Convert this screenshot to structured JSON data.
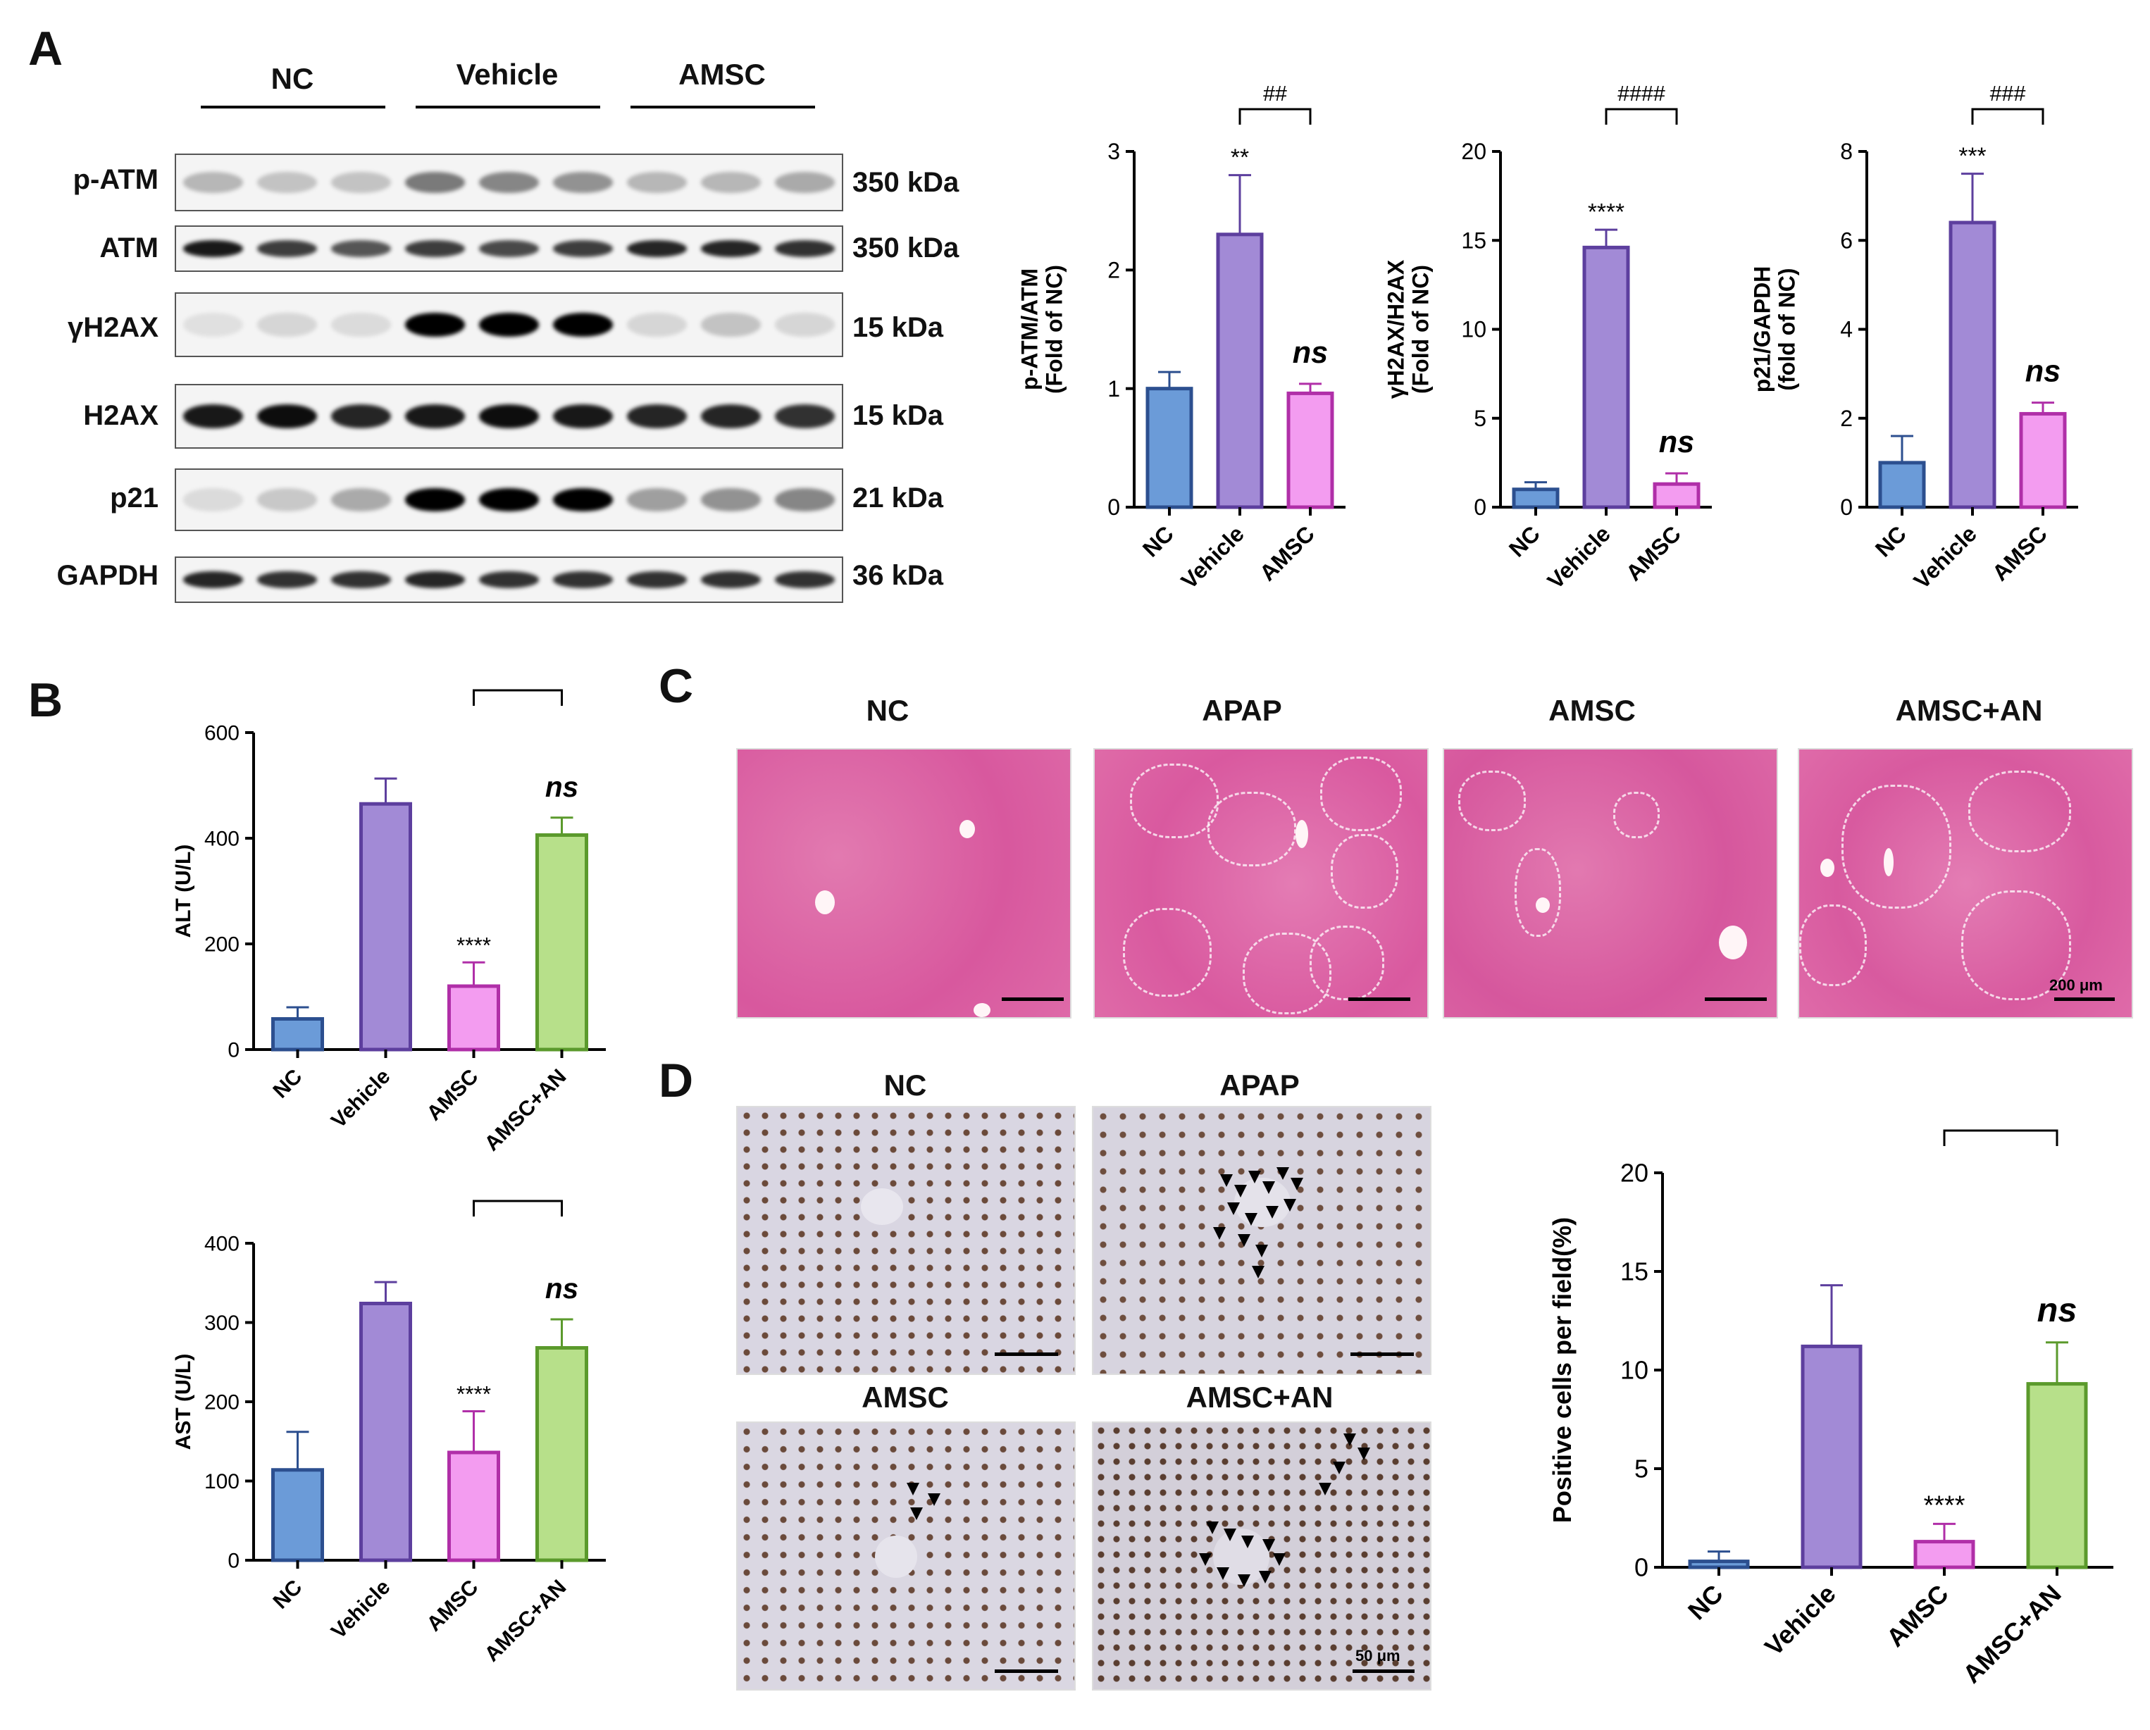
{
  "panels": {
    "A": "A",
    "B": "B",
    "C": "C",
    "D": "D"
  },
  "blot": {
    "groups": [
      "NC",
      "Vehicle",
      "AMSC"
    ],
    "rows": [
      {
        "label": "p-ATM",
        "kda": "350 kDa"
      },
      {
        "label": "ATM",
        "kda": "350 kDa"
      },
      {
        "label": "γH2AX",
        "kda": "15 kDa"
      },
      {
        "label": "H2AX",
        "kda": "15 kDa"
      },
      {
        "label": "p21",
        "kda": "21 kDa"
      },
      {
        "label": "GAPDH",
        "kda": "36 kDa"
      }
    ]
  },
  "histology_C": {
    "groups": [
      "NC",
      "APAP",
      "AMSC",
      "AMSC+AN"
    ],
    "scale_label": "200 μm"
  },
  "histology_D": {
    "groups": [
      "NC",
      "APAP",
      "AMSC",
      "AMSC+AN"
    ],
    "scale_label": "50 μm"
  },
  "colors": {
    "NC": {
      "fill": "#6b9bd8",
      "stroke": "#2c4f8f"
    },
    "Vehicle": {
      "fill": "#a28ad6",
      "stroke": "#5d3f9e"
    },
    "AMSC": {
      "fill": "#f39cf0",
      "stroke": "#b02fa8"
    },
    "AMSC+AN": {
      "fill": "#b7e08a",
      "stroke": "#5b9a2c"
    }
  },
  "chart_data": [
    {
      "type": "bar",
      "categories": [
        "NC",
        "Vehicle",
        "AMSC"
      ],
      "values": [
        1.0,
        2.3,
        0.96
      ],
      "errors": [
        0.14,
        0.5,
        0.08
      ],
      "ylabel": "p-ATM/ATM\n(Fold of NC)",
      "ylim": [
        0,
        3
      ],
      "yticks": [
        0,
        1,
        2,
        3
      ],
      "annotations": [
        {
          "bar": 1,
          "text": "**"
        },
        {
          "bar": 2,
          "text": "ns",
          "italic": true
        }
      ],
      "bracket": {
        "from": 1,
        "to": 2,
        "text": "##"
      }
    },
    {
      "type": "bar",
      "categories": [
        "NC",
        "Vehicle",
        "AMSC"
      ],
      "values": [
        1.0,
        14.6,
        1.3
      ],
      "errors": [
        0.4,
        1.0,
        0.6
      ],
      "ylabel": "γH2AX/H2AX\n(Fold of NC)",
      "ylim": [
        0,
        20
      ],
      "yticks": [
        0,
        5,
        10,
        15,
        20
      ],
      "annotations": [
        {
          "bar": 1,
          "text": "****"
        },
        {
          "bar": 2,
          "text": "ns",
          "italic": true
        }
      ],
      "bracket": {
        "from": 1,
        "to": 2,
        "text": "####"
      }
    },
    {
      "type": "bar",
      "categories": [
        "NC",
        "Vehicle",
        "AMSC"
      ],
      "values": [
        1.0,
        6.4,
        2.1
      ],
      "errors": [
        0.6,
        1.1,
        0.25
      ],
      "ylabel": "p21/GAPDH\n(fold of NC)",
      "ylim": [
        0,
        8
      ],
      "yticks": [
        0,
        2,
        4,
        6,
        8
      ],
      "annotations": [
        {
          "bar": 1,
          "text": "***"
        },
        {
          "bar": 2,
          "text": "ns",
          "italic": true
        }
      ],
      "bracket": {
        "from": 1,
        "to": 2,
        "text": "###"
      }
    },
    {
      "type": "bar",
      "categories": [
        "NC",
        "Vehicle",
        "AMSC",
        "AMSC+AN"
      ],
      "values": [
        58,
        465,
        120,
        406
      ],
      "errors": [
        22,
        48,
        45,
        33
      ],
      "ylabel": "ALT (U/L)",
      "ylim": [
        0,
        600
      ],
      "yticks": [
        0,
        200,
        400,
        600
      ],
      "annotations": [
        {
          "bar": 2,
          "text": "****"
        },
        {
          "bar": 3,
          "text": "ns",
          "italic": true
        }
      ],
      "bracket": {
        "from": 2,
        "to": 3,
        "text": "####"
      }
    },
    {
      "type": "bar",
      "categories": [
        "NC",
        "Vehicle",
        "AMSC",
        "AMSC+AN"
      ],
      "values": [
        114,
        324,
        136,
        268
      ],
      "errors": [
        48,
        27,
        52,
        36
      ],
      "ylabel": "AST (U/L)",
      "ylim": [
        0,
        400
      ],
      "yticks": [
        0,
        100,
        200,
        300,
        400
      ],
      "annotations": [
        {
          "bar": 2,
          "text": "****"
        },
        {
          "bar": 3,
          "text": "ns",
          "italic": true
        }
      ],
      "bracket": {
        "from": 2,
        "to": 3,
        "text": "###"
      }
    },
    {
      "type": "bar",
      "categories": [
        "NC",
        "Vehicle",
        "AMSC",
        "AMSC+AN"
      ],
      "values": [
        0.3,
        11.2,
        1.3,
        9.3
      ],
      "errors": [
        0.5,
        3.1,
        0.9,
        2.1
      ],
      "ylabel": "Positive cells per field(%)",
      "ylim": [
        0,
        20
      ],
      "yticks": [
        0,
        5,
        10,
        15,
        20
      ],
      "annotations": [
        {
          "bar": 2,
          "text": "****"
        },
        {
          "bar": 3,
          "text": "ns",
          "italic": true
        }
      ],
      "bracket": {
        "from": 2,
        "to": 3,
        "text": "####"
      }
    }
  ]
}
